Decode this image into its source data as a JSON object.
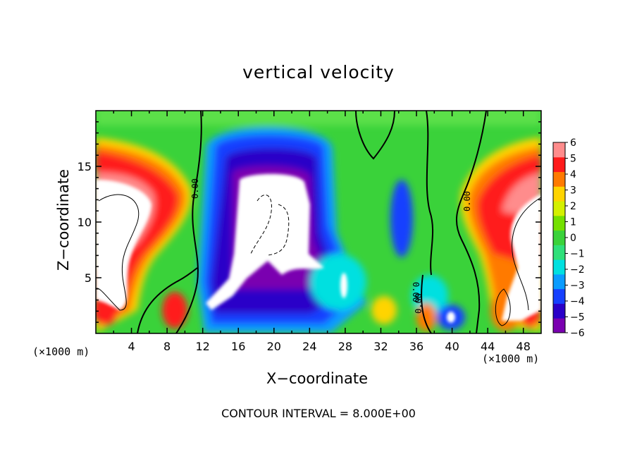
{
  "chart_data": {
    "type": "heatmap",
    "title": "vertical velocity",
    "xlabel": "X−coordinate",
    "ylabel": "Z−coordinate",
    "x_units_label": "(×1000 m)",
    "xlim": [
      0,
      50
    ],
    "ylim": [
      0,
      20
    ],
    "x_ticks": [
      4,
      8,
      12,
      16,
      20,
      24,
      28,
      32,
      36,
      40,
      44,
      48
    ],
    "y_ticks": [
      5,
      10,
      15
    ],
    "colorbar": {
      "labels": [
        "6",
        "5",
        "4",
        "3",
        "2",
        "1",
        "0",
        "−1",
        "−2",
        "−3",
        "−4",
        "−5",
        "−6"
      ],
      "min": -6,
      "max": 6,
      "colors": [
        "#7a00b0",
        "#2a00c8",
        "#1640ff",
        "#0a9cff",
        "#00e0e0",
        "#2fe07a",
        "#3ad23a",
        "#74e000",
        "#d4f000",
        "#ffd400",
        "#ff7a00",
        "#ff1a1a",
        "#ff8c8c"
      ]
    },
    "contour_labels": [
      "0.00",
      "0.00",
      "0.00",
      "0.00"
    ],
    "footer": "CONTOUR INTERVAL = 8.000E+00"
  }
}
